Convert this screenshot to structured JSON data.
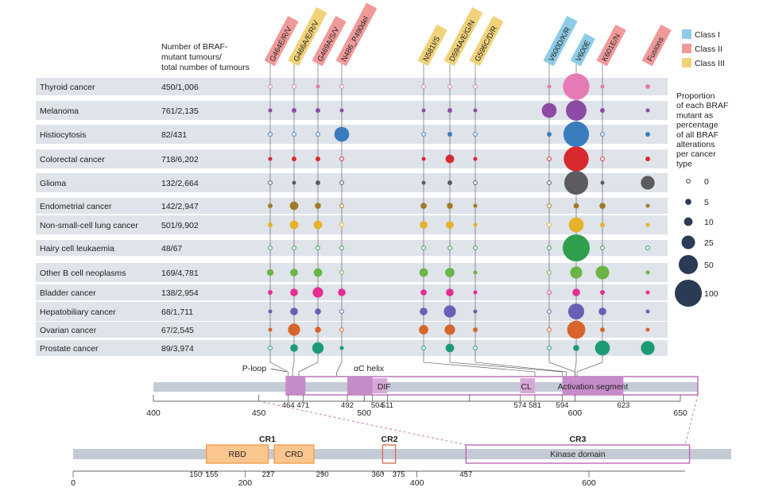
{
  "chart_data": {
    "type": "scatter",
    "header": {
      "count_label_lines": [
        "Number of BRAF-",
        "mutant tumours/",
        "total number of tumours"
      ]
    },
    "mutations": [
      {
        "name": "G464E/R/V",
        "class": "II"
      },
      {
        "name": "G466A/E/R/V",
        "class": "III"
      },
      {
        "name": "G469A/S/V",
        "class": "II"
      },
      {
        "name": "N486_P490del",
        "class": "II"
      },
      {
        "name": "N581I/S",
        "class": "III"
      },
      {
        "name": "D594A/E/G/N",
        "class": "III"
      },
      {
        "name": "G596C/D/R",
        "class": "III"
      },
      {
        "name": "V600D/K/R",
        "class": "I"
      },
      {
        "name": "V600E",
        "class": "I"
      },
      {
        "name": "K601E/N",
        "class": "II"
      },
      {
        "name": "Fusions",
        "class": "II"
      }
    ],
    "cancers": [
      {
        "name": "Thyroid cancer",
        "count": "450/1,006",
        "color": "#e67ab5",
        "values": [
          0,
          0,
          2,
          0,
          0,
          0,
          0,
          1,
          96,
          2,
          3
        ]
      },
      {
        "name": "Melanoma",
        "count": "761/2,135",
        "color": "#8e4ba6",
        "values": [
          1,
          3,
          3,
          1,
          2,
          3,
          1,
          30,
          58,
          3,
          2
        ]
      },
      {
        "name": "Histiocytosis",
        "count": "82/431",
        "color": "#3a7dbf",
        "values": [
          0,
          0,
          0,
          30,
          0,
          3,
          0,
          3,
          90,
          0,
          3
        ]
      },
      {
        "name": "Colorectal cancer",
        "count": "718/6,202",
        "color": "#d8292e",
        "values": [
          1,
          3,
          3,
          0,
          2,
          10,
          1,
          0,
          85,
          0,
          3
        ]
      },
      {
        "name": "Glioma",
        "count": "132/2,664",
        "color": "#5b5b60",
        "values": [
          0,
          2,
          3,
          0,
          2,
          3,
          0,
          0,
          78,
          1,
          26
        ]
      },
      {
        "name": "Endometrial cancer",
        "count": "142/2,947",
        "color": "#a07a28",
        "values": [
          3,
          10,
          5,
          0,
          5,
          5,
          1,
          0,
          4,
          5,
          1
        ]
      },
      {
        "name": "Non-small-cell lung cancer",
        "count": "501/9,902",
        "color": "#e5b22a",
        "values": [
          3,
          10,
          10,
          0,
          8,
          8,
          2,
          0,
          30,
          3,
          2
        ]
      },
      {
        "name": "Hairy cell leukaemia",
        "count": "48/67",
        "color": "#2f9f4e",
        "values": [
          0,
          0,
          0,
          0,
          0,
          0,
          0,
          0,
          100,
          0,
          0
        ]
      },
      {
        "name": "Other B cell neoplasms",
        "count": "169/4,781",
        "color": "#6ab545",
        "values": [
          6,
          8,
          10,
          0,
          10,
          12,
          2,
          0,
          20,
          25,
          1
        ]
      },
      {
        "name": "Bladder cancer",
        "count": "138/2,954",
        "color": "#e52e93",
        "values": [
          3,
          8,
          15,
          8,
          5,
          8,
          2,
          0,
          8,
          3,
          1
        ]
      },
      {
        "name": "Hepatobiliary cancer",
        "count": "68/1,711",
        "color": "#6a5fb5",
        "values": [
          1,
          8,
          5,
          0,
          8,
          20,
          1,
          0,
          35,
          8,
          1
        ]
      },
      {
        "name": "Ovarian cancer",
        "count": "67/2,545",
        "color": "#d8642a",
        "values": [
          1,
          20,
          5,
          0,
          12,
          15,
          3,
          0,
          45,
          3,
          1
        ]
      },
      {
        "name": "Prostate cancer",
        "count": "89/3,974",
        "color": "#1c9a76",
        "values": [
          0,
          8,
          18,
          2,
          0,
          10,
          0,
          0,
          5,
          30,
          26
        ]
      }
    ],
    "legend": {
      "classes": [
        {
          "label": "Class I",
          "color": "#8ecbe6"
        },
        {
          "label": "Class II",
          "color": "#ef9a9a"
        },
        {
          "label": "Class III",
          "color": "#f0d27a"
        }
      ],
      "proportion_title_lines": [
        "Proportion",
        "of each BRAF",
        "mutant as",
        "percentage",
        "of all BRAF",
        "alterations",
        "per cancer",
        "type"
      ],
      "sizes": [
        0,
        5,
        10,
        25,
        50,
        100
      ]
    },
    "domain_track": {
      "xlim": [
        400,
        650
      ],
      "ticks": [
        400,
        450,
        500,
        550,
        600,
        650
      ],
      "tick_labels": [
        "400",
        "450",
        "500",
        "",
        "600",
        "650"
      ],
      "minor_labels": [
        {
          "pos": 464,
          "label": "464"
        },
        {
          "pos": 471,
          "label": "471"
        },
        {
          "pos": 492,
          "label": "492"
        },
        {
          "pos": 504,
          "label": "504"
        },
        {
          "pos": 511,
          "label": "511"
        },
        {
          "pos": 574,
          "label": "574"
        },
        {
          "pos": 581,
          "label": "581"
        },
        {
          "pos": 594,
          "label": "594"
        },
        {
          "pos": 623,
          "label": "623"
        }
      ],
      "regions": [
        {
          "label": "P-loop",
          "start": 464,
          "end": 471
        },
        {
          "label": "αC helix",
          "start": 492,
          "end": 504
        },
        {
          "label": "DIF",
          "start": 504,
          "end": 511
        },
        {
          "label": "CL",
          "start": 574,
          "end": 581
        },
        {
          "label": "Activation segment",
          "start": 594,
          "end": 623
        }
      ]
    },
    "protein_track": {
      "xlim": [
        0,
        766
      ],
      "tick_labels": [
        {
          "pos": 0,
          "label": "0"
        },
        {
          "pos": 150,
          "label": "150"
        },
        {
          "pos": 155,
          "label": "155"
        },
        {
          "pos": 200,
          "label": "200"
        },
        {
          "pos": 227,
          "label": "227"
        },
        {
          "pos": 290,
          "label": "290"
        },
        {
          "pos": 360,
          "label": "360"
        },
        {
          "pos": 375,
          "label": "375"
        },
        {
          "pos": 400,
          "label": "400"
        },
        {
          "pos": 457,
          "label": "457"
        },
        {
          "pos": 600,
          "label": "600"
        }
      ],
      "regions": [
        {
          "group": "CR1",
          "label": "RBD",
          "start": 155,
          "end": 227
        },
        {
          "group": "CR1",
          "label": "CRD",
          "start": 234,
          "end": 280
        },
        {
          "group": "CR2",
          "label": "",
          "start": 360,
          "end": 375
        },
        {
          "group": "CR3",
          "label": "Kinase domain",
          "start": 457,
          "end": 717
        }
      ]
    }
  }
}
